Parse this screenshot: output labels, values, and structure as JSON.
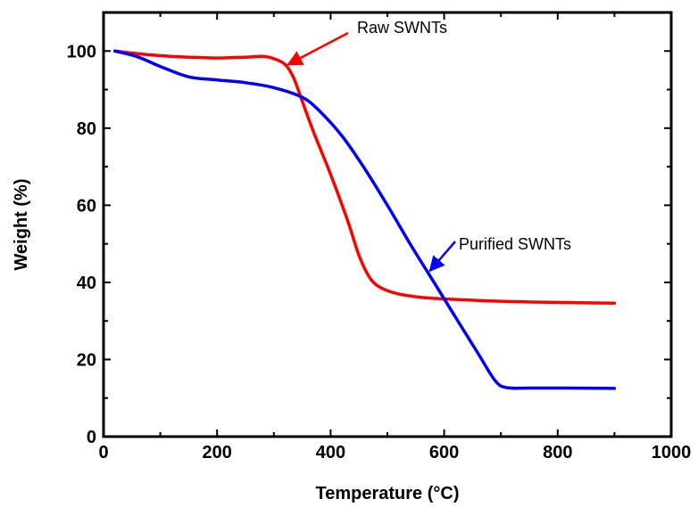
{
  "chart_data": {
    "type": "line",
    "xlabel": "Temperature (°C)",
    "ylabel": "Weight (%)",
    "xlim": [
      0,
      1000
    ],
    "ylim": [
      0,
      110
    ],
    "xticks": [
      0,
      200,
      400,
      600,
      800,
      1000
    ],
    "yticks": [
      0,
      20,
      40,
      60,
      80,
      100
    ],
    "grid": false,
    "series": [
      {
        "name": "Raw SWNTs",
        "color": "#ff0000",
        "x": [
          20,
          60,
          100,
          150,
          200,
          250,
          280,
          300,
          320,
          335,
          350,
          370,
          400,
          430,
          450,
          470,
          490,
          520,
          560,
          600,
          700,
          800,
          900
        ],
        "y": [
          100,
          99.3,
          98.8,
          98.4,
          98.2,
          98.4,
          98.6,
          98.0,
          96.5,
          93,
          87,
          79,
          68,
          56,
          47,
          41,
          38.5,
          37,
          36.1,
          35.7,
          35.1,
          34.8,
          34.6
        ]
      },
      {
        "name": "Purified SWNTs",
        "color": "#0000ff",
        "x": [
          20,
          60,
          100,
          150,
          200,
          250,
          300,
          350,
          380,
          420,
          460,
          500,
          540,
          580,
          620,
          660,
          690,
          710,
          750,
          800,
          900
        ],
        "y": [
          100,
          98.5,
          96,
          93.3,
          92.5,
          91.8,
          90.5,
          88,
          84.5,
          78,
          69.5,
          60,
          50,
          40.5,
          31,
          21.5,
          14.5,
          12.7,
          12.6,
          12.6,
          12.5
        ]
      }
    ],
    "annotations": [
      {
        "text": "Raw SWNTs",
        "points_to": {
          "x": 325,
          "y": 96.5
        }
      },
      {
        "text": "Purified SWNTs",
        "points_to": {
          "x": 575,
          "y": 43
        }
      }
    ]
  }
}
